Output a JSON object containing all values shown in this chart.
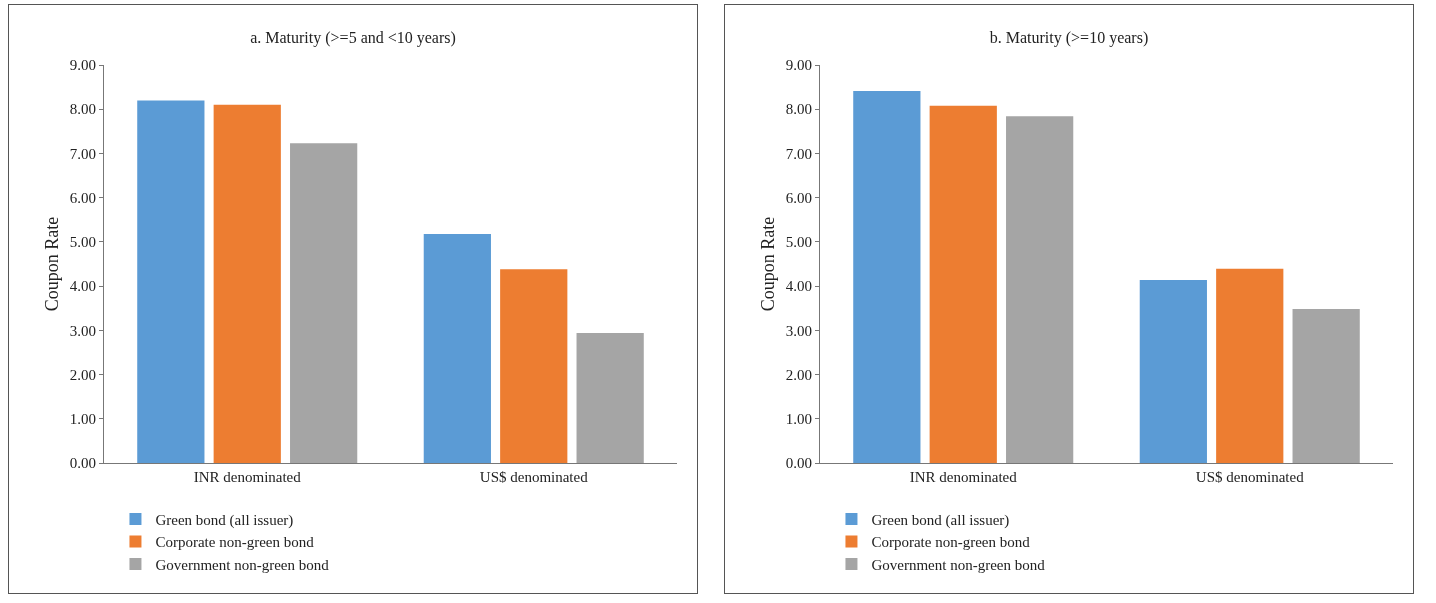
{
  "chart_data": [
    {
      "type": "bar",
      "title": "a. Maturity (>=5 and <10 years)",
      "ylabel": "Coupon Rate",
      "categories": [
        "INR denominated",
        "US$ denominated"
      ],
      "series": [
        {
          "name": "Green bond (all issuer)",
          "color": "#5b9bd5",
          "values": [
            8.2,
            5.18
          ]
        },
        {
          "name": "Corporate non-green bond",
          "color": "#ed7d31",
          "values": [
            8.1,
            4.38
          ]
        },
        {
          "name": "Government non-green bond",
          "color": "#a5a5a5",
          "values": [
            7.23,
            2.94
          ]
        }
      ],
      "ylim": [
        0,
        9
      ],
      "yticks": [
        {
          "value": 0,
          "label": "0.00"
        },
        {
          "value": 1,
          "label": "1.00"
        },
        {
          "value": 2,
          "label": "2.00"
        },
        {
          "value": 3,
          "label": "3.00"
        },
        {
          "value": 4,
          "label": "4.00"
        },
        {
          "value": 5,
          "label": "5.00"
        },
        {
          "value": 6,
          "label": "6.00"
        },
        {
          "value": 7,
          "label": "7.00"
        },
        {
          "value": 8,
          "label": "8.00"
        },
        {
          "value": 9,
          "label": "9.00"
        }
      ],
      "grid": false,
      "legend": "bottom"
    },
    {
      "type": "bar",
      "title": "b. Maturity (>=10 years)",
      "ylabel": "Coupon Rate",
      "categories": [
        "INR denominated",
        "US$ denominated"
      ],
      "series": [
        {
          "name": "Green bond (all issuer)",
          "color": "#5b9bd5",
          "values": [
            8.41,
            4.14
          ]
        },
        {
          "name": "Corporate non-green bond",
          "color": "#ed7d31",
          "values": [
            8.08,
            4.39
          ]
        },
        {
          "name": "Government non-green bond",
          "color": "#a5a5a5",
          "values": [
            7.84,
            3.48
          ]
        }
      ],
      "ylim": [
        0,
        9
      ],
      "yticks": [
        {
          "value": 0,
          "label": "0.00"
        },
        {
          "value": 1,
          "label": "1.00"
        },
        {
          "value": 2,
          "label": "2.00"
        },
        {
          "value": 3,
          "label": "3.00"
        },
        {
          "value": 4,
          "label": "4.00"
        },
        {
          "value": 5,
          "label": "5.00"
        },
        {
          "value": 6,
          "label": "6.00"
        },
        {
          "value": 7,
          "label": "7.00"
        },
        {
          "value": 8,
          "label": "8.00"
        },
        {
          "value": 9,
          "label": "9.00"
        }
      ],
      "grid": false,
      "legend": "bottom"
    }
  ]
}
